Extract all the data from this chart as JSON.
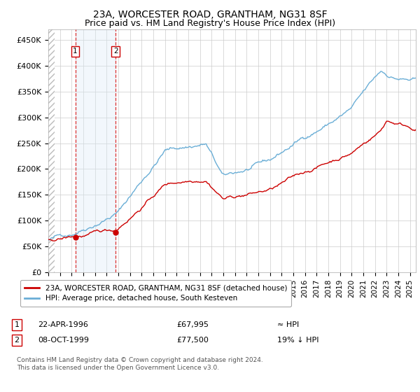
{
  "title": "23A, WORCESTER ROAD, GRANTHAM, NG31 8SF",
  "subtitle": "Price paid vs. HM Land Registry's House Price Index (HPI)",
  "title_fontsize": 10,
  "subtitle_fontsize": 9,
  "ylim": [
    0,
    470000
  ],
  "xlim_start": 1994.0,
  "xlim_end": 2025.5,
  "yticks": [
    0,
    50000,
    100000,
    150000,
    200000,
    250000,
    300000,
    350000,
    400000,
    450000
  ],
  "ytick_labels": [
    "£0",
    "£50K",
    "£100K",
    "£150K",
    "£200K",
    "£250K",
    "£300K",
    "£350K",
    "£400K",
    "£450K"
  ],
  "xticks": [
    1994,
    1995,
    1996,
    1997,
    1998,
    1999,
    2000,
    2001,
    2002,
    2003,
    2004,
    2005,
    2006,
    2007,
    2008,
    2009,
    2010,
    2011,
    2012,
    2013,
    2014,
    2015,
    2016,
    2017,
    2018,
    2019,
    2020,
    2021,
    2022,
    2023,
    2024,
    2025
  ],
  "hpi_line_color": "#6aaed6",
  "price_line_color": "#cc0000",
  "marker_color": "#cc0000",
  "grid_color": "#cccccc",
  "bg_color": "#ffffff",
  "highlight_bg": "#daeaf7",
  "sale1_year": 1996.31,
  "sale1_price": 67995,
  "sale2_year": 1999.77,
  "sale2_price": 77500,
  "legend_line1": "23A, WORCESTER ROAD, GRANTHAM, NG31 8SF (detached house)",
  "legend_line2": "HPI: Average price, detached house, South Kesteven",
  "annotation1_label": "1",
  "annotation1_date": "22-APR-1996",
  "annotation1_price": "£67,995",
  "annotation1_hpi": "≈ HPI",
  "annotation2_label": "2",
  "annotation2_date": "08-OCT-1999",
  "annotation2_price": "£77,500",
  "annotation2_hpi": "19% ↓ HPI",
  "footer1": "Contains HM Land Registry data © Crown copyright and database right 2024.",
  "footer2": "This data is licensed under the Open Government Licence v3.0."
}
